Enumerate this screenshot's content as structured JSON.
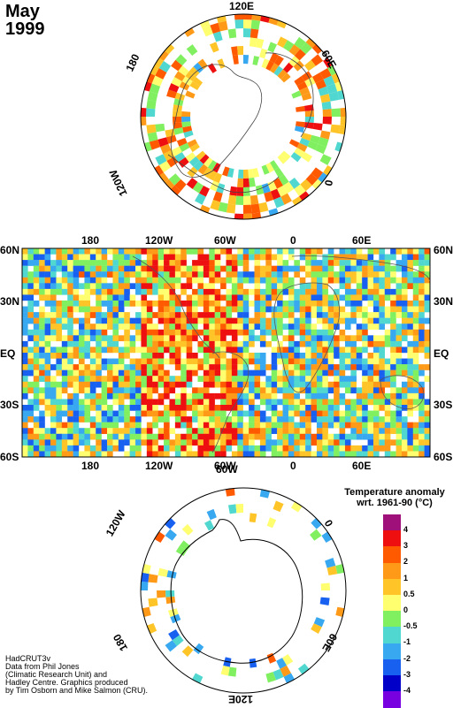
{
  "header": {
    "month": "May",
    "year": "1999"
  },
  "north_map": {
    "labels": {
      "top": "120E",
      "right": "60E",
      "right_low": "0",
      "left": "180",
      "left_low": "120W"
    }
  },
  "world_map": {
    "top_lon": [
      "180",
      "120W",
      "60W",
      "0",
      "60E"
    ],
    "bottom_lon": [
      "180",
      "120W",
      "60W",
      "0",
      "60E"
    ],
    "lat_left": [
      "60N",
      "30N",
      "EQ",
      "30S",
      "60S"
    ],
    "lat_right": [
      "60N",
      "30N",
      "EQ",
      "30S",
      "60S"
    ]
  },
  "south_map": {
    "labels": {
      "top": "60W",
      "left_up": "120W",
      "right_up": "0",
      "left_low": "180",
      "right_low": "60E",
      "bottom": "120E"
    }
  },
  "legend": {
    "title_line1": "Temperature anomaly",
    "title_line2": "wrt. 1961-90  (°C)",
    "entries": [
      {
        "label": "4",
        "color": "#a0107a"
      },
      {
        "label": "3",
        "color": "#ee1010"
      },
      {
        "label": "2",
        "color": "#ff5a00"
      },
      {
        "label": "1",
        "color": "#ff9a18"
      },
      {
        "label": "0.5",
        "color": "#ffc428"
      },
      {
        "label": "0",
        "color": "#ffff70"
      },
      {
        "label": "-0.5",
        "color": "#80f060"
      },
      {
        "label": "-1",
        "color": "#50d8d0"
      },
      {
        "label": "-2",
        "color": "#38a8f0"
      },
      {
        "label": "-3",
        "color": "#1860f0"
      },
      {
        "label": "-4",
        "color": "#0000c8"
      },
      {
        "label": "",
        "color": "#7800e0"
      }
    ]
  },
  "credit": {
    "line1": "HadCRUT3v",
    "line2": "Data from Phil Jones",
    "line3": "(Climatic Research Unit) and",
    "line4": "Hadley Centre.  Graphics produced",
    "line5": "by Tim Osborn and Mike Salmon (CRU)."
  }
}
